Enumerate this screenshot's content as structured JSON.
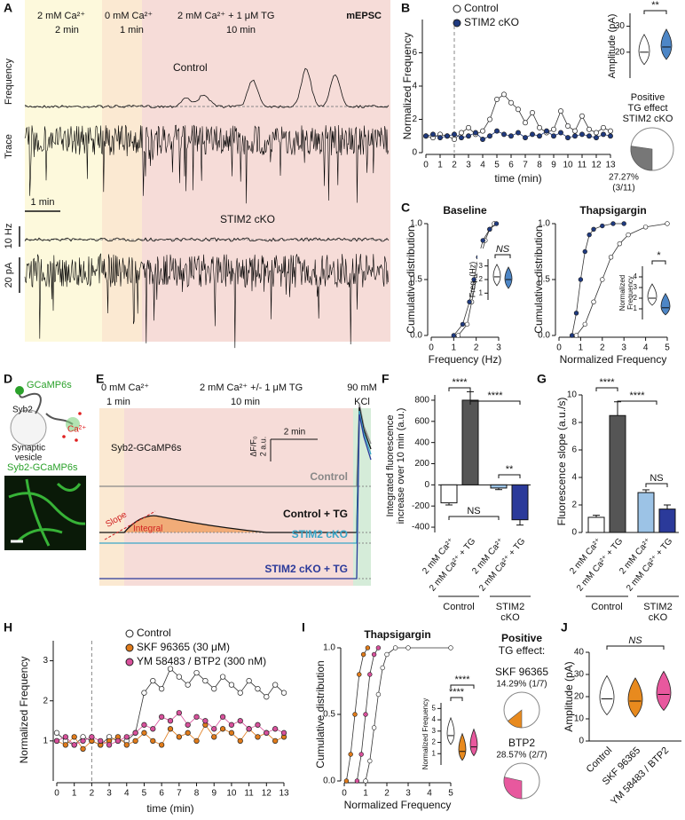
{
  "panel_a": {
    "letter": "A",
    "bands": [
      {
        "line1": "2 mM Ca²⁺",
        "line2": "2 min"
      },
      {
        "line1": "0 mM Ca²⁺",
        "line2": "1 min"
      },
      {
        "line1": "2 mM Ca²⁺ + 1 μM TG",
        "line2": "10 min"
      }
    ],
    "tag": "mEPSC",
    "frequency_label": "Frequency",
    "trace_label": "Trace",
    "control": "Control",
    "stim2": "STIM2 cKO",
    "scale_time": "1 min",
    "scale_freq": "10 Hz",
    "scale_amp": "20 pA"
  },
  "panel_b": {
    "letter": "B",
    "xlabel": "time (min)",
    "ylabel": "Normalized Frequency",
    "xlim": [
      0,
      13
    ],
    "ylim": [
      0,
      8
    ],
    "xticks": [
      0,
      1,
      2,
      3,
      4,
      5,
      6,
      7,
      8,
      9,
      10,
      11,
      12,
      13
    ],
    "yticks": [
      0,
      2,
      4,
      6
    ],
    "x": [
      0,
      0.5,
      1,
      1.5,
      2,
      2.5,
      3,
      3.5,
      4,
      4.5,
      5,
      5.5,
      6,
      6.5,
      7,
      7.5,
      8,
      8.5,
      9,
      9.5,
      10,
      10.5,
      11,
      11.5,
      12,
      12.5,
      13
    ],
    "series": [
      {
        "name": "Control",
        "color": "#ffffff",
        "values": [
          1,
          0.9,
          1.1,
          1,
          0.8,
          1.2,
          1.5,
          1.1,
          1.3,
          2,
          3.2,
          3.5,
          3,
          2.6,
          1.8,
          2.4,
          1.5,
          1.2,
          1.4,
          2.5,
          1.6,
          1.3,
          2.2,
          1.4,
          1.2,
          1.5,
          1.3
        ]
      },
      {
        "name": "STIM2 cKO",
        "color": "#1f3a80",
        "values": [
          1,
          1.1,
          0.9,
          1,
          1.1,
          0.9,
          1,
          1.2,
          0.8,
          1,
          1.3,
          1.1,
          1,
          1.2,
          0.9,
          1.1,
          1,
          1.3,
          1,
          1.2,
          0.9,
          1,
          1.1,
          1,
          0.9,
          1.1,
          1
        ]
      }
    ],
    "amplitude": {
      "ylabel": "Amplitude (pA)",
      "ylim": [
        10,
        35
      ],
      "yticks": [
        20,
        30
      ],
      "significance": "**",
      "medians": [
        20,
        22
      ],
      "colors": [
        "#ffffff",
        "#4d86c6"
      ]
    },
    "pie": {
      "title_lines": [
        "Positive",
        "TG effect",
        "STIM2 cKO"
      ],
      "value": 27.27,
      "label": "27.27%",
      "count": "(3/11)",
      "color": "#777777"
    }
  },
  "panel_c": {
    "letter": "C",
    "baseline": {
      "title": "Baseline",
      "xlabel": "Frequency (Hz)",
      "ylabel": "Cumulative distribution",
      "xlim": [
        0,
        3
      ],
      "ylim": [
        0,
        1
      ],
      "xticks": [
        0,
        1,
        2,
        3
      ],
      "yticks": [
        {
          "value": 0,
          "label": "0.0"
        },
        {
          "value": 0.5,
          "label": "0.5"
        },
        {
          "value": 1,
          "label": "1.0"
        }
      ],
      "series": [
        {
          "color": "#ffffff",
          "x": [
            1.2,
            1.6,
            1.8,
            2.0,
            2.2,
            2.4,
            2.6,
            2.8
          ],
          "y": [
            0,
            0.1,
            0.3,
            0.5,
            0.7,
            0.85,
            0.95,
            1
          ]
        },
        {
          "color": "#1f3a80",
          "x": [
            1.0,
            1.4,
            1.7,
            1.9,
            2.1,
            2.3,
            2.6,
            2.9
          ],
          "y": [
            0,
            0.1,
            0.3,
            0.5,
            0.7,
            0.85,
            0.95,
            1
          ]
        }
      ],
      "inset": {
        "ylabel": "Freq. (Hz)",
        "ylim": [
          0.5,
          3.5
        ],
        "yticks": [
          1,
          2,
          3
        ],
        "significance": "NS",
        "medians": [
          2.2,
          2.0
        ],
        "colors": [
          "#ffffff",
          "#4d86c6"
        ]
      }
    },
    "thapsigargin": {
      "title": "Thapsigargin",
      "xlabel": "Normalized Frequency",
      "ylabel": "Cumulative distribution",
      "xlim": [
        0,
        5
      ],
      "ylim": [
        0,
        1
      ],
      "xticks": [
        0,
        1,
        2,
        3,
        4,
        5
      ],
      "yticks": [
        {
          "value": 0,
          "label": "0.0"
        },
        {
          "value": 0.5,
          "label": "0.5"
        },
        {
          "value": 1,
          "label": "1.0"
        }
      ],
      "series": [
        {
          "color": "#ffffff",
          "x": [
            0.8,
            1.2,
            1.6,
            2,
            2.4,
            2.8,
            3.2,
            4,
            5
          ],
          "y": [
            0,
            0.1,
            0.3,
            0.5,
            0.7,
            0.82,
            0.9,
            0.97,
            1
          ]
        },
        {
          "color": "#1f3a80",
          "x": [
            0.6,
            0.8,
            1,
            1.2,
            1.4,
            1.6,
            2,
            2.5,
            3
          ],
          "y": [
            0,
            0.2,
            0.5,
            0.75,
            0.9,
            0.95,
            0.98,
            1,
            1
          ]
        }
      ],
      "inset": {
        "ylabel_lines": [
          "Normalized",
          "Frequency"
        ],
        "ylim": [
          0,
          5
        ],
        "yticks": [
          1,
          2,
          3,
          4
        ],
        "significance": "*",
        "medians": [
          2,
          1.1
        ],
        "colors": [
          "#ffffff",
          "#4d86c6"
        ]
      }
    }
  },
  "panel_d": {
    "letter": "D",
    "gcamp": "GCaMP6s",
    "syb2": "Syb2",
    "vesicle_lines": [
      "Synaptic",
      "vesicle"
    ],
    "calcium": "Ca²⁺",
    "image_title": "Syb2-GCaMP6s"
  },
  "panel_e": {
    "letter": "E",
    "bands": [
      {
        "line1": "0 mM Ca²⁺",
        "line2": "1 min"
      },
      {
        "line1": "2 mM Ca²⁺ +/- 1 μM TG",
        "line2": "10 min"
      },
      {
        "line1": "90 mM",
        "line2": "KCl"
      }
    ],
    "sensor": "Syb2-GCaMP6s",
    "scale_time": "2 min",
    "scale_unit": "ΔF/F₀",
    "scale_amp": "2 a.u.",
    "traces": [
      {
        "name": "Control",
        "color": "#888888"
      },
      {
        "name": "Control + TG",
        "color": "#111111"
      },
      {
        "name": "STIM2 cKO",
        "color": "#3aa6c8"
      },
      {
        "name": "STIM2 cKO + TG",
        "color": "#2b3a9a"
      }
    ],
    "slope": "Slope",
    "integral": "Integral"
  },
  "panel_f": {
    "letter": "F",
    "ylabel_lines": [
      "Integrated fluorescence",
      "increase over 10 min (a.u.)"
    ],
    "ylim": [
      -450,
      850
    ],
    "yticks": [
      -400,
      -200,
      0,
      200,
      400,
      600,
      800
    ],
    "categories": [
      "2 mM Ca²⁺",
      "2 mM Ca²⁺ + TG",
      "2 mM Ca²⁺",
      "2 mM Ca²⁺ + TG"
    ],
    "values": [
      -170,
      800,
      -30,
      -330
    ],
    "errors": [
      20,
      80,
      15,
      50
    ],
    "colors": [
      "#ffffff",
      "#555555",
      "#9cc3e6",
      "#2b3a9a"
    ],
    "groups": [
      [
        "Control"
      ],
      [
        "STIM2",
        "cKO"
      ]
    ],
    "significance": [
      "****",
      "****",
      "**",
      "NS"
    ]
  },
  "panel_g": {
    "letter": "G",
    "ylabel": "Fluorescence slope (a.u./s)",
    "ylim": [
      0,
      10
    ],
    "yticks": [
      0,
      2,
      4,
      6,
      8,
      10
    ],
    "categories": [
      "2 mM Ca²⁺",
      "2 mM Ca²⁺ + TG",
      "2 mM Ca²⁺",
      "2 mM Ca²⁺ + TG"
    ],
    "values": [
      1.1,
      8.5,
      2.9,
      1.7
    ],
    "errors": [
      0.15,
      1,
      0.2,
      0.3
    ],
    "colors": [
      "#ffffff",
      "#555555",
      "#9cc3e6",
      "#2b3a9a"
    ],
    "groups": [
      [
        "Control"
      ],
      [
        "STIM2",
        "cKO"
      ]
    ],
    "significance": [
      "****",
      "****",
      "NS"
    ]
  },
  "panel_h": {
    "letter": "H",
    "xlabel": "time (min)",
    "ylabel": "Normalized Frequency",
    "xlim": [
      0,
      13
    ],
    "ylim": [
      0,
      3.5
    ],
    "xticks": [
      0,
      1,
      2,
      3,
      4,
      5,
      6,
      7,
      8,
      9,
      10,
      11,
      12,
      13
    ],
    "yticks": [
      1,
      2,
      3
    ],
    "x": [
      0,
      0.5,
      1,
      1.5,
      2,
      2.5,
      3,
      3.5,
      4,
      4.5,
      5,
      5.5,
      6,
      6.5,
      7,
      7.5,
      8,
      8.5,
      9,
      9.5,
      10,
      10.5,
      11,
      11.5,
      12,
      12.5,
      13
    ],
    "series": [
      {
        "name": "Control",
        "color": "#ffffff",
        "values": [
          1.2,
          1,
          0.9,
          1.1,
          1,
          0.9,
          1.1,
          1,
          1,
          1.2,
          2.2,
          2.5,
          2.3,
          2.8,
          2.6,
          2.4,
          2.7,
          2.5,
          2.3,
          2.6,
          2.4,
          2.2,
          2.5,
          2.3,
          2.1,
          2.4,
          2.2
        ]
      },
      {
        "name": "SKF 96365 (30 μM)",
        "color": "#e07b1a",
        "values": [
          1,
          0.9,
          1.1,
          0.8,
          1,
          0.9,
          1,
          1.1,
          0.9,
          1,
          1.2,
          1,
          0.9,
          1.3,
          1.1,
          1.2,
          1,
          1.4,
          1.1,
          1.3,
          1.2,
          1,
          1.3,
          1.1,
          1.2,
          1,
          1.1
        ]
      },
      {
        "name": "YM 58483 / BTP2 (300 nM)",
        "color": "#d8509b",
        "values": [
          1,
          1.1,
          0.9,
          1,
          1.1,
          1,
          0.9,
          1,
          1.1,
          1.2,
          1.4,
          1.3,
          1.6,
          1.5,
          1.7,
          1.4,
          1.6,
          1.5,
          1.3,
          1.6,
          1.4,
          1.5,
          1.3,
          1.4,
          1.2,
          1.3,
          1.2
        ]
      }
    ]
  },
  "panel_i": {
    "letter": "I",
    "title": "Thapsigargin",
    "xlabel": "Normalized Frequency",
    "ylabel": "Cumulative distribution",
    "xlim": [
      0,
      5
    ],
    "ylim": [
      0,
      1
    ],
    "xticks": [
      0,
      1,
      2,
      3,
      4,
      5
    ],
    "yticks": [
      {
        "value": 0,
        "label": "0.0"
      },
      {
        "value": 0.5,
        "label": "0.5"
      },
      {
        "value": 1,
        "label": "1.0"
      }
    ],
    "series": [
      {
        "color": "#ffffff",
        "x": [
          1,
          1.2,
          1.4,
          1.6,
          1.8,
          2,
          2.4,
          3,
          5
        ],
        "y": [
          0,
          0.15,
          0.4,
          0.65,
          0.85,
          0.95,
          1,
          1,
          1
        ]
      },
      {
        "color": "#e07b1a",
        "x": [
          0.1,
          0.3,
          0.5,
          0.7,
          0.9,
          1.1
        ],
        "y": [
          0,
          0.2,
          0.5,
          0.8,
          0.95,
          1
        ]
      },
      {
        "color": "#d8509b",
        "x": [
          0.6,
          0.8,
          1,
          1.2,
          1.4,
          1.6
        ],
        "y": [
          0,
          0.2,
          0.5,
          0.8,
          0.95,
          1
        ]
      }
    ],
    "inset": {
      "ylabel": "Normalized Frequency",
      "ylim": [
        0,
        5.5
      ],
      "yticks": [
        1,
        2,
        3,
        4,
        5
      ],
      "significance": [
        "****",
        "****"
      ],
      "medians": [
        2.6,
        1.2,
        1.6
      ],
      "colors": [
        "#ffffff",
        "#e88a1e",
        "#e8589e"
      ]
    },
    "pie_title_lines": [
      "Positive",
      "TG effect:"
    ],
    "pies": [
      {
        "name": "SKF 96365",
        "value": 14.29,
        "label": "14.29% (1/7)",
        "color": "#e88a1e"
      },
      {
        "name": "BTP2",
        "value": 28.57,
        "label": "28.57% (2/7)",
        "color": "#e8589e"
      }
    ]
  },
  "panel_j": {
    "letter": "J",
    "ylabel": "Amplitude (pA)",
    "ylim": [
      0,
      40
    ],
    "yticks": [
      0,
      10,
      20,
      30,
      40
    ],
    "categories": [
      "Control",
      "SKF 96365",
      "YM 58483 / BTP2"
    ],
    "medians": [
      19,
      18,
      21
    ],
    "colors": [
      "#ffffff",
      "#e88a1e",
      "#e8589e"
    ],
    "significance": "NS"
  }
}
